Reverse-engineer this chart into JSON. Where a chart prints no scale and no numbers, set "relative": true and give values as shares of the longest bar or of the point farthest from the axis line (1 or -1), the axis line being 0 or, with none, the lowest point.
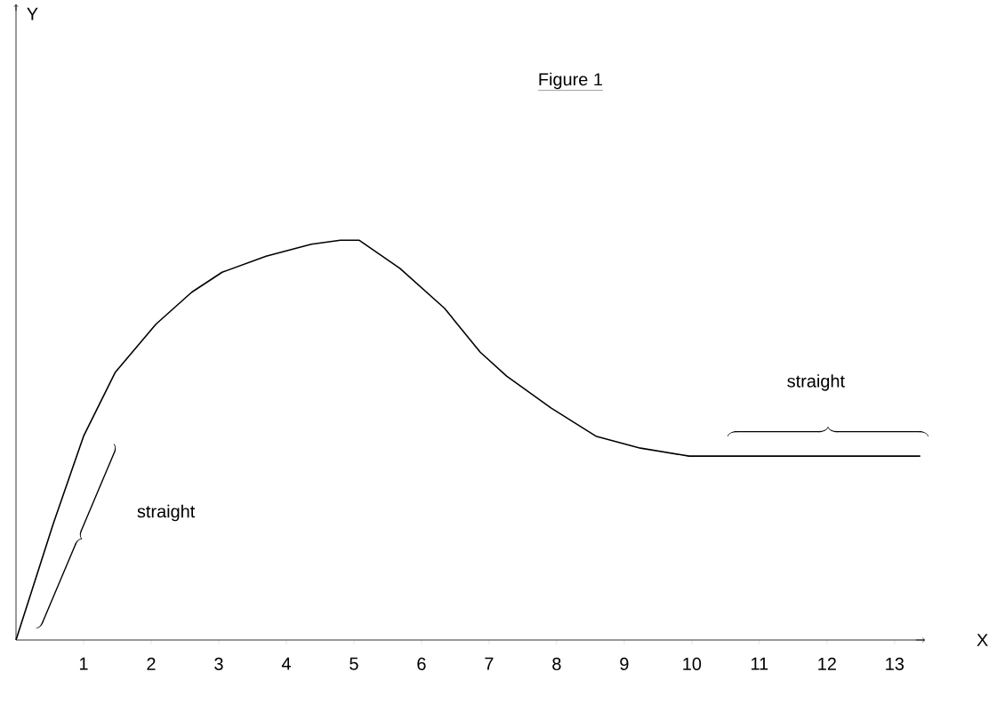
{
  "chart_data": {
    "type": "line",
    "title": "Figure 1",
    "xlabel": "X",
    "relative": true,
    "x": [
      0,
      0.55,
      1.0,
      1.47,
      2.07,
      2.6,
      3.05,
      3.7,
      4.37,
      4.8,
      5.08,
      5.68,
      6.34,
      6.87,
      7.26,
      7.92,
      8.58,
      9.24,
      9.96,
      10.55,
      13.38
    ],
    "values": [
      0,
      0.29,
      0.51,
      0.67,
      0.79,
      0.87,
      0.92,
      0.96,
      0.99,
      1.0,
      1.0,
      0.93,
      0.83,
      0.72,
      0.66,
      0.58,
      0.51,
      0.48,
      0.46,
      0.46,
      0.46
    ],
    "color": "#000000",
    "line_style": "solid",
    "marker": "none",
    "xlim": [
      0,
      13.45
    ],
    "xticks": [
      1,
      2,
      3,
      4,
      5,
      6,
      7,
      8,
      9,
      10,
      11,
      12,
      13
    ],
    "annotations": [
      "straight",
      "straight",
      "Y"
    ]
  }
}
